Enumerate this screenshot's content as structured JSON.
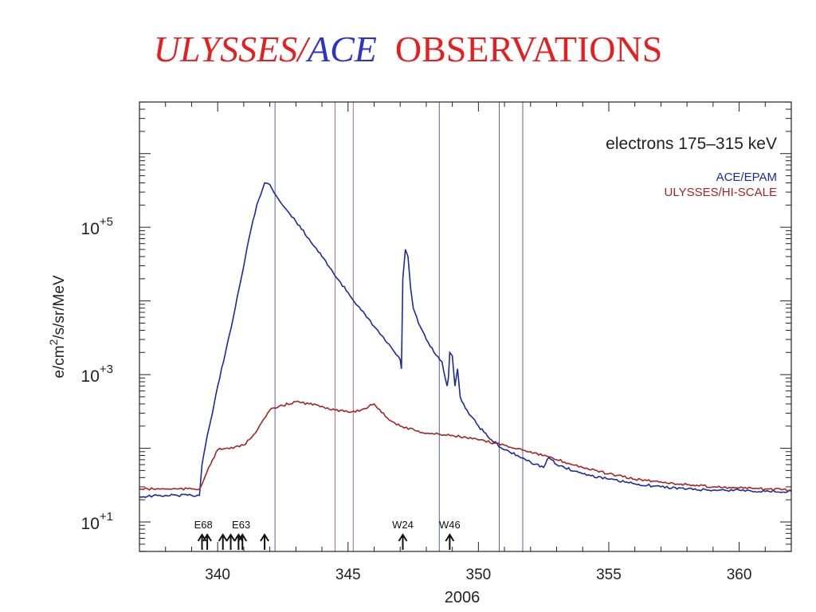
{
  "title": {
    "part1": "ULYSSES/",
    "part2": "ACE",
    "part3": "OBSERVATIONS",
    "color1": "#e41f1f",
    "color2": "#2b33c9",
    "color3": "#e41f1f"
  },
  "chart_data": {
    "type": "line",
    "title": "",
    "annotation": "electrons 175–315 keV",
    "xlabel": "2006",
    "ylabel_parts": [
      "e/cm",
      "2",
      "/s/sr/MeV"
    ],
    "xlim": [
      337,
      362
    ],
    "ylim_log10": [
      0.6,
      6.7
    ],
    "y_scale": "log",
    "grid": false,
    "legend_position": "top-right",
    "x_ticks": [
      {
        "value": 340,
        "label": "340"
      },
      {
        "value": 345,
        "label": "345"
      },
      {
        "value": 350,
        "label": "350"
      },
      {
        "value": 355,
        "label": "355"
      },
      {
        "value": 360,
        "label": "360"
      }
    ],
    "y_ticks": [
      {
        "value": 10,
        "base": "10",
        "exp": "+1"
      },
      {
        "value": 1000,
        "base": "10",
        "exp": "+3"
      },
      {
        "value": 100000,
        "base": "10",
        "exp": "+5"
      }
    ],
    "series": [
      {
        "name": "ACE/EPAM",
        "color": "#1c2a9a",
        "x": [
          337,
          338,
          339,
          339.3,
          339.4,
          339.6,
          339.8,
          340,
          340.3,
          340.6,
          340.9,
          341.2,
          341.5,
          341.8,
          342,
          342.15,
          342.3,
          342.6,
          343,
          343.5,
          344,
          344.5,
          345,
          345.5,
          346,
          346.5,
          347,
          347.05,
          347.1,
          347.2,
          347.3,
          347.4,
          347.5,
          347.7,
          348,
          348.3,
          348.6,
          348.8,
          348.85,
          348.9,
          349,
          349.1,
          349.2,
          349.3,
          349.5,
          350,
          350.5,
          351,
          351.5,
          352,
          352.5,
          352.7,
          352.8,
          353,
          354,
          355,
          356,
          357,
          358,
          359,
          360,
          361,
          362
        ],
        "values": [
          22,
          23,
          23,
          23,
          60,
          150,
          300,
          700,
          2000,
          6000,
          20000,
          70000,
          200000,
          400000,
          380000,
          300000,
          250000,
          180000,
          120000,
          70000,
          40000,
          22000,
          13000,
          7500,
          4500,
          2700,
          1600,
          1200,
          20000,
          50000,
          40000,
          15000,
          8000,
          5000,
          3000,
          2000,
          1500,
          700,
          900,
          2000,
          1800,
          700,
          1200,
          500,
          350,
          200,
          130,
          95,
          80,
          65,
          55,
          75,
          70,
          60,
          45,
          38,
          33,
          30,
          28,
          27,
          27,
          26,
          26
        ]
      },
      {
        "name": "ULYSSES/HI-SCALE",
        "color": "#a32525",
        "x": [
          337,
          338,
          339,
          339.3,
          339.5,
          339.8,
          340,
          340.3,
          340.6,
          341,
          341.3,
          341.6,
          342,
          342.5,
          343,
          343.5,
          344,
          344.5,
          345,
          345.5,
          346,
          346.5,
          347,
          348,
          349,
          350,
          351,
          352,
          353,
          354,
          355,
          356,
          357,
          358,
          359,
          360,
          361,
          362
        ],
        "values": [
          28,
          28,
          28,
          28,
          40,
          70,
          95,
          100,
          100,
          110,
          140,
          200,
          330,
          380,
          430,
          400,
          370,
          330,
          310,
          330,
          400,
          260,
          200,
          160,
          150,
          130,
          110,
          90,
          70,
          55,
          45,
          38,
          35,
          32,
          30,
          29,
          28,
          27
        ]
      }
    ],
    "vertical_lines": [
      {
        "x": 342.2,
        "color": "#57609e"
      },
      {
        "x": 344.5,
        "color": "#b56a6a"
      },
      {
        "x": 345.2,
        "color": "#b56a6a"
      },
      {
        "x": 348.5,
        "color": "#57609e"
      },
      {
        "x": 350.8,
        "color": "#57609e"
      },
      {
        "x": 351.7,
        "color": "#57609e"
      }
    ],
    "event_arrows": [
      339.4,
      339.6,
      340.2,
      340.5,
      340.8,
      340.95,
      341.8,
      347.1,
      348.9
    ],
    "event_labels": [
      {
        "x": 339.45,
        "text": "E68"
      },
      {
        "x": 340.9,
        "text": "E63"
      },
      {
        "x": 347.1,
        "text": "W24"
      },
      {
        "x": 348.9,
        "text": "W46"
      }
    ]
  }
}
